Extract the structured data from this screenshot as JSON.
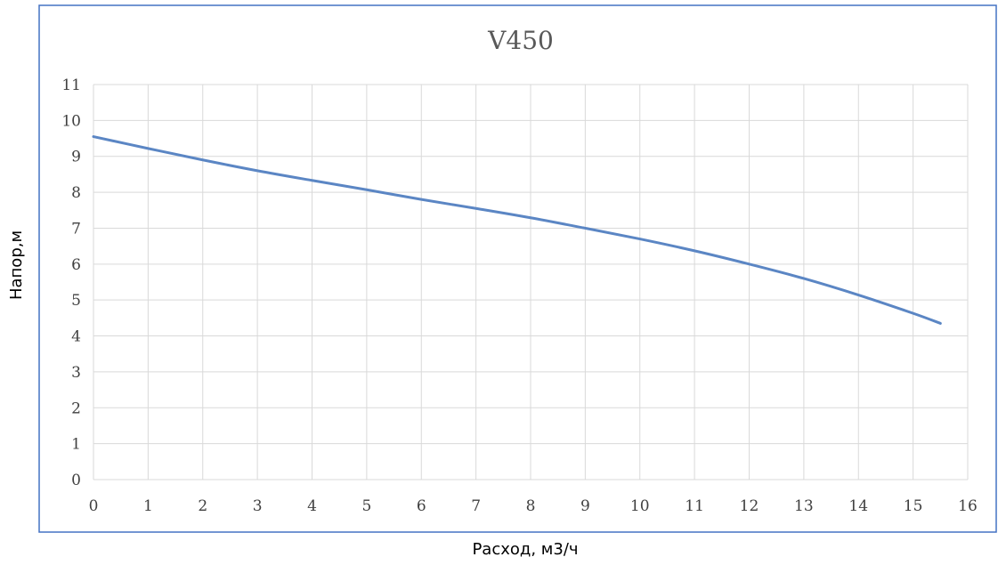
{
  "chart_data": {
    "type": "line",
    "title": "V450",
    "xlabel": "Расход, м3/ч",
    "ylabel": "Напор,м",
    "xlim": [
      0,
      16
    ],
    "ylim": [
      0,
      11
    ],
    "x_ticks": [
      "0",
      "1",
      "2",
      "3",
      "4",
      "5",
      "6",
      "7",
      "8",
      "9",
      "10",
      "11",
      "12",
      "13",
      "14",
      "15",
      "16"
    ],
    "y_ticks": [
      "0",
      "1",
      "2",
      "3",
      "4",
      "5",
      "6",
      "7",
      "8",
      "9",
      "10",
      "11"
    ],
    "grid": true,
    "legend": "none",
    "series": [
      {
        "color": "#5b86c4",
        "x": [
          0,
          1,
          2,
          3,
          4,
          5,
          6,
          7,
          8,
          9,
          10,
          11,
          12,
          13,
          14,
          15,
          15.5
        ],
        "y": [
          9.55,
          9.22,
          8.9,
          8.6,
          8.33,
          8.07,
          7.8,
          7.55,
          7.29,
          7.0,
          6.7,
          6.37,
          6.0,
          5.6,
          5.14,
          4.63,
          4.35
        ]
      }
    ]
  }
}
